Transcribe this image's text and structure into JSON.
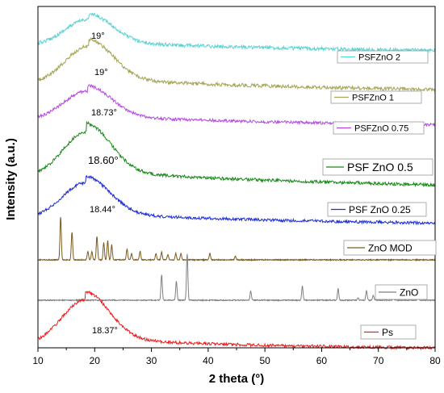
{
  "chart_data": {
    "type": "line",
    "xlabel": "2 theta (°)",
    "ylabel": "Intensity (a.u.)",
    "xlim": [
      10,
      80
    ],
    "xticks": [
      10,
      20,
      30,
      40,
      50,
      60,
      70,
      80
    ],
    "grid": false,
    "series": [
      {
        "name": "PSFZnO 2",
        "color": "#5cd3d3",
        "kind": "amorphous",
        "peak_x": 19,
        "peak_label": "19°",
        "legend_size": "small"
      },
      {
        "name": "PSFZnO 1",
        "color": "#a6a657",
        "kind": "amorphous",
        "peak_x": 19,
        "peak_label": "19°",
        "legend_size": "small"
      },
      {
        "name": "PSFZnO 0.75",
        "color": "#b34be0",
        "kind": "amorphous",
        "peak_x": 18.73,
        "peak_label": "18.73°",
        "legend_size": "small"
      },
      {
        "name": "PSF ZnO 0.5",
        "color": "#1a8a1a",
        "kind": "amorphous",
        "peak_x": 18.6,
        "peak_label": "18.60°",
        "legend_size": "large"
      },
      {
        "name": "PSF ZnO 0.25",
        "color": "#1f2fd6",
        "kind": "amorphous",
        "peak_x": 18.44,
        "peak_label": "18.44°",
        "legend_size": "medium"
      },
      {
        "name": "ZnO MOD",
        "color": "#7a5a1e",
        "kind": "crystalline",
        "peaks_x": [
          14.0,
          16.0,
          18.8,
          19.5,
          20.4,
          21.6,
          22.3,
          23.0,
          25.7,
          26.5,
          28.0,
          30.8,
          31.8,
          32.9,
          34.3,
          35.2,
          40.3,
          44.8
        ],
        "peaks_h": [
          1.0,
          0.65,
          0.2,
          0.2,
          0.55,
          0.4,
          0.45,
          0.35,
          0.25,
          0.15,
          0.2,
          0.15,
          0.18,
          0.12,
          0.15,
          0.15,
          0.15,
          0.08
        ],
        "legend_size": "medium"
      },
      {
        "name": "ZnO",
        "color": "#808080",
        "kind": "crystalline",
        "peaks_x": [
          31.8,
          34.4,
          36.3,
          47.5,
          56.6,
          62.9,
          66.4,
          67.9,
          69.1,
          72.6,
          77.0
        ],
        "peaks_h": [
          0.55,
          0.4,
          1.0,
          0.2,
          0.3,
          0.25,
          0.05,
          0.2,
          0.1,
          0.03,
          0.05
        ],
        "legend_size": "small"
      },
      {
        "name": "Ps",
        "color": "#ee1c1c",
        "kind": "amorphous",
        "peak_x": 18.37,
        "peak_label": "18.37°",
        "legend_size": "medium"
      }
    ]
  }
}
